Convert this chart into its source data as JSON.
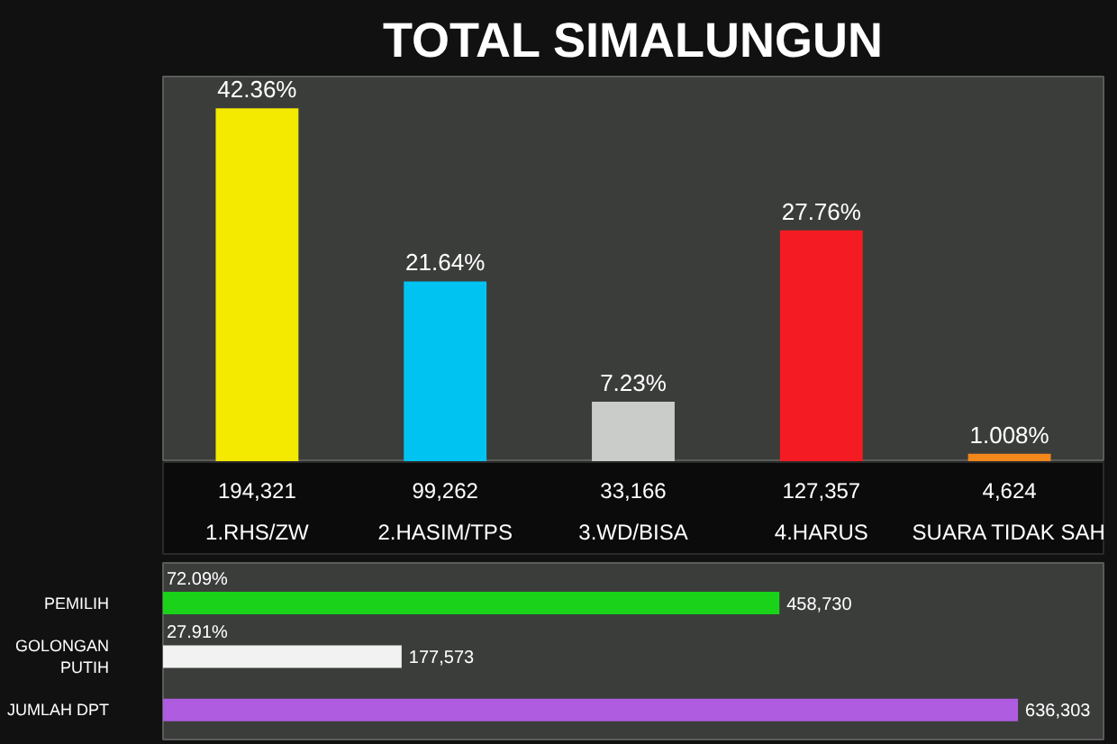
{
  "chart_data": [
    {
      "type": "bar",
      "title": "TOTAL SIMALUNGUN",
      "categories": [
        "1.RHS/ZW",
        "2.HASIM/TPS",
        "3.WD/BISA",
        "4.HARUS",
        "SUARA TIDAK SAH"
      ],
      "values": [
        42.36,
        21.64,
        7.23,
        27.76,
        1.008
      ],
      "colors": [
        "#f3ea00",
        "#00c3f2",
        "#c9ccc8",
        "#f41c22",
        "#f2881c"
      ],
      "value_labels": [
        "42.36%",
        "21.64%",
        "7.23%",
        "27.76%",
        "1.008%"
      ],
      "tick_labels": "x",
      "annotations": [
        "194,321",
        "99,262",
        "33,166",
        "127,357",
        "4,624"
      ]
    },
    {
      "type": "bar",
      "orientation": "horizontal",
      "categories": [
        "PEMILIH",
        "GOLONGAN\nPUTIH",
        "JUMLAH DPT"
      ],
      "values": [
        458730,
        177573,
        636303
      ],
      "colors": [
        "#19d219",
        "#f2f2f2",
        "#b05ce0"
      ],
      "value_labels": [
        "458,730",
        "177,573",
        "636,303"
      ],
      "tick_labels": "y",
      "annotations": [
        "72.09%",
        "27.91%"
      ]
    }
  ]
}
